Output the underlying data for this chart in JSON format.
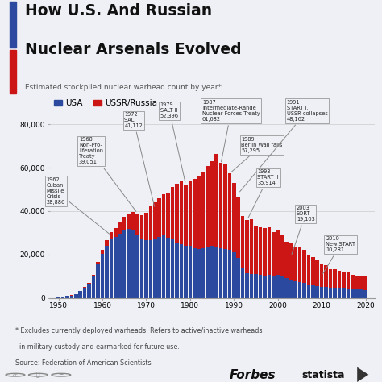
{
  "title_line1": "How U.S. And Russian",
  "title_line2": "Nuclear Arsenals Evolved",
  "subtitle": "Estimated stockpiled nuclear warhead count by year*",
  "footnote1": "* Excludes currently deployed warheads. Refers to active/inactive warheads",
  "footnote2": "  in military custody and earmarked for future use.",
  "source": "Source: Federation of American Scientists",
  "usa_color": "#2b4a9f",
  "ussr_color": "#cc1515",
  "bg_color": "#eef0f5",
  "years": [
    1950,
    1951,
    1952,
    1953,
    1954,
    1955,
    1956,
    1957,
    1958,
    1959,
    1960,
    1961,
    1962,
    1963,
    1964,
    1965,
    1966,
    1967,
    1968,
    1969,
    1970,
    1971,
    1972,
    1973,
    1974,
    1975,
    1976,
    1977,
    1978,
    1979,
    1980,
    1981,
    1982,
    1983,
    1984,
    1985,
    1986,
    1987,
    1988,
    1989,
    1990,
    1991,
    1992,
    1993,
    1994,
    1995,
    1996,
    1997,
    1998,
    1999,
    2000,
    2001,
    2002,
    2003,
    2004,
    2005,
    2006,
    2007,
    2008,
    2009,
    2010,
    2011,
    2012,
    2013,
    2014,
    2015,
    2016,
    2017,
    2018,
    2019,
    2020
  ],
  "usa": [
    299,
    438,
    832,
    1161,
    1703,
    3057,
    4618,
    6444,
    9822,
    15468,
    20434,
    24111,
    27100,
    28200,
    29600,
    31100,
    31900,
    31255,
    28884,
    27100,
    26600,
    26700,
    27000,
    28200,
    28800,
    27700,
    27100,
    25700,
    24600,
    24100,
    23900,
    23000,
    22600,
    22900,
    23700,
    23900,
    23400,
    23100,
    22400,
    22200,
    21000,
    18300,
    13700,
    11500,
    11200,
    10900,
    10500,
    10200,
    10500,
    10200,
    10500,
    10000,
    9000,
    8000,
    7700,
    7200,
    7000,
    6000,
    5700,
    5300,
    5000,
    5000,
    4700,
    4700,
    4700,
    4700,
    4500,
    4000,
    3800,
    3800,
    3750
  ],
  "ussr": [
    5,
    10,
    50,
    120,
    150,
    200,
    426,
    660,
    1000,
    1060,
    1700,
    2500,
    3300,
    4000,
    5200,
    6300,
    7100,
    8400,
    10100,
    11000,
    12500,
    15800,
    17000,
    17800,
    19100,
    20500,
    24000,
    27000,
    29000,
    28300,
    30000,
    32000,
    33500,
    35400,
    37000,
    39000,
    43000,
    39000,
    39000,
    35095,
    32000,
    28000,
    24000,
    24414,
    25000,
    22000,
    22000,
    22000,
    22000,
    20000,
    21000,
    19000,
    17000,
    17000,
    16000,
    16000,
    15000,
    14000,
    13000,
    12000,
    11000,
    10000,
    8500,
    8500,
    7700,
    7600,
    7300,
    6800,
    6500,
    6375,
    6257
  ]
}
